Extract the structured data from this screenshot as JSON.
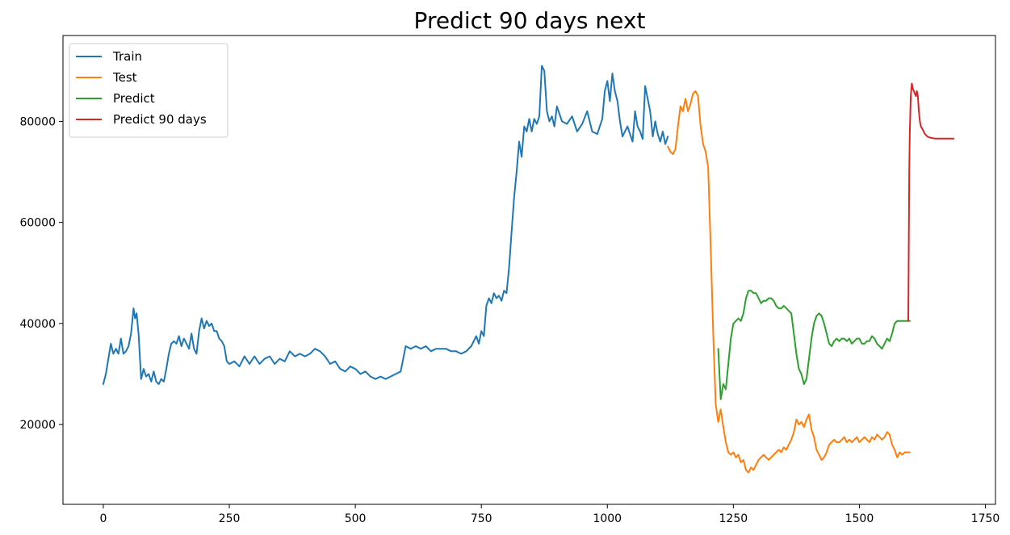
{
  "chart_data": {
    "type": "line",
    "title": "Predict 90 days next",
    "xlabel": "",
    "ylabel": "",
    "xlim": [
      -80,
      1770
    ],
    "ylim": [
      4200,
      97000
    ],
    "xticks": [
      0,
      250,
      500,
      750,
      1000,
      1250,
      1500,
      1750
    ],
    "yticks": [
      20000,
      40000,
      60000,
      80000
    ],
    "grid": false,
    "legend_position": "top-left",
    "series": [
      {
        "name": "Train",
        "color": "#1f77b4",
        "x": [
          0,
          5,
          10,
          15,
          20,
          25,
          30,
          35,
          40,
          45,
          50,
          55,
          60,
          63,
          66,
          70,
          75,
          80,
          85,
          90,
          95,
          100,
          105,
          110,
          115,
          120,
          125,
          130,
          135,
          140,
          145,
          150,
          155,
          160,
          165,
          170,
          175,
          180,
          185,
          190,
          195,
          200,
          205,
          210,
          215,
          220,
          225,
          230,
          235,
          240,
          245,
          250,
          260,
          270,
          280,
          290,
          300,
          310,
          320,
          330,
          340,
          350,
          360,
          370,
          380,
          390,
          400,
          410,
          420,
          430,
          440,
          450,
          460,
          470,
          480,
          490,
          500,
          510,
          520,
          530,
          540,
          550,
          560,
          570,
          580,
          590,
          600,
          610,
          620,
          630,
          640,
          650,
          660,
          670,
          680,
          690,
          700,
          710,
          720,
          730,
          740,
          745,
          750,
          755,
          760,
          765,
          770,
          775,
          780,
          785,
          790,
          795,
          800,
          805,
          810,
          815,
          820,
          825,
          830,
          835,
          840,
          845,
          850,
          855,
          860,
          865,
          870,
          875,
          880,
          885,
          890,
          895,
          900,
          910,
          920,
          930,
          940,
          950,
          960,
          970,
          980,
          990,
          995,
          1000,
          1005,
          1010,
          1015,
          1020,
          1025,
          1030,
          1040,
          1050,
          1055,
          1060,
          1065,
          1070,
          1075,
          1080,
          1085,
          1090,
          1095,
          1100,
          1105,
          1110,
          1115,
          1120
        ],
        "y": [
          28000,
          30000,
          33000,
          36000,
          34000,
          35000,
          34000,
          37000,
          34000,
          34500,
          35500,
          38000,
          43000,
          41000,
          42000,
          38000,
          29000,
          31000,
          29500,
          30000,
          28500,
          30500,
          28500,
          28000,
          29000,
          28500,
          31000,
          34000,
          36000,
          36500,
          36000,
          37500,
          35500,
          37000,
          36000,
          35000,
          38000,
          35000,
          34000,
          38500,
          41000,
          39000,
          40500,
          39500,
          40000,
          38500,
          38500,
          37000,
          36500,
          35500,
          32500,
          32000,
          32500,
          31500,
          33500,
          32000,
          33500,
          32000,
          33000,
          33500,
          32000,
          33000,
          32500,
          34500,
          33500,
          34000,
          33500,
          34000,
          35000,
          34500,
          33500,
          32000,
          32500,
          31000,
          30500,
          31500,
          31000,
          30000,
          30500,
          29500,
          29000,
          29500,
          29000,
          29500,
          30000,
          30500,
          35500,
          35000,
          35500,
          35000,
          35500,
          34500,
          35000,
          35000,
          35000,
          34500,
          34500,
          34000,
          34500,
          35500,
          37500,
          36000,
          38500,
          37500,
          43500,
          45000,
          44000,
          46000,
          45000,
          45500,
          44500,
          46500,
          46000,
          51000,
          58000,
          65000,
          70000,
          76000,
          73000,
          79000,
          78000,
          80500,
          78000,
          80500,
          79500,
          81000,
          91000,
          90000,
          82000,
          80000,
          81000,
          79000,
          83000,
          80000,
          79500,
          81000,
          78000,
          79500,
          82000,
          78000,
          77500,
          80500,
          86000,
          88000,
          84000,
          89500,
          86000,
          84000,
          80000,
          77000,
          79000,
          76000,
          82000,
          79000,
          78000,
          76500,
          87000,
          84500,
          82000,
          77000,
          80000,
          77500,
          76000,
          78000,
          75500,
          77000
        ]
      },
      {
        "name": "Test",
        "color": "#ff7f0e",
        "x": [
          1120,
          1125,
          1130,
          1135,
          1140,
          1145,
          1150,
          1155,
          1160,
          1165,
          1170,
          1175,
          1180,
          1185,
          1190,
          1195,
          1200,
          1205,
          1210,
          1215,
          1220,
          1225,
          1230,
          1235,
          1240,
          1245,
          1250,
          1255,
          1260,
          1265,
          1270,
          1275,
          1280,
          1285,
          1290,
          1295,
          1300,
          1305,
          1310,
          1315,
          1320,
          1325,
          1330,
          1335,
          1340,
          1345,
          1350,
          1355,
          1360,
          1365,
          1370,
          1375,
          1380,
          1385,
          1390,
          1395,
          1400,
          1405,
          1410,
          1415,
          1420,
          1425,
          1430,
          1435,
          1440,
          1445,
          1450,
          1455,
          1460,
          1465,
          1470,
          1475,
          1480,
          1485,
          1490,
          1495,
          1500,
          1505,
          1510,
          1515,
          1520,
          1525,
          1530,
          1535,
          1540,
          1545,
          1550,
          1555,
          1560,
          1565,
          1570,
          1575,
          1580,
          1585,
          1590,
          1595,
          1600
        ],
        "y": [
          75000,
          74000,
          73500,
          74500,
          79000,
          83000,
          82000,
          84500,
          82000,
          83500,
          85500,
          86000,
          85000,
          79000,
          75500,
          74000,
          71000,
          55000,
          38000,
          24000,
          20500,
          23000,
          19500,
          16500,
          14500,
          14000,
          14500,
          13500,
          14000,
          12500,
          13000,
          11000,
          10500,
          11500,
          11000,
          12000,
          13000,
          13500,
          14000,
          13500,
          13000,
          13500,
          14000,
          14500,
          15000,
          14500,
          15500,
          15000,
          16000,
          17000,
          18500,
          21000,
          20000,
          20500,
          19500,
          21000,
          22000,
          19000,
          17500,
          15000,
          14000,
          13000,
          13500,
          14500,
          16000,
          16500,
          17000,
          16500,
          16500,
          17000,
          17500,
          16500,
          17000,
          16500,
          17000,
          17500,
          16500,
          17000,
          17500,
          17000,
          16500,
          17500,
          17000,
          18000,
          17500,
          17000,
          17500,
          18500,
          18000,
          16000,
          15000,
          13500,
          14500,
          14000,
          14500,
          14500,
          14500
        ]
      },
      {
        "name": "Predict",
        "color": "#2ca02c",
        "x": [
          1220,
          1225,
          1230,
          1235,
          1240,
          1245,
          1250,
          1255,
          1260,
          1265,
          1270,
          1275,
          1280,
          1285,
          1290,
          1295,
          1300,
          1305,
          1310,
          1315,
          1320,
          1325,
          1330,
          1335,
          1340,
          1345,
          1350,
          1355,
          1360,
          1365,
          1370,
          1375,
          1380,
          1385,
          1390,
          1395,
          1400,
          1405,
          1410,
          1415,
          1420,
          1425,
          1430,
          1435,
          1440,
          1445,
          1450,
          1455,
          1460,
          1465,
          1470,
          1475,
          1480,
          1485,
          1490,
          1495,
          1500,
          1505,
          1510,
          1515,
          1520,
          1525,
          1530,
          1535,
          1540,
          1545,
          1550,
          1555,
          1560,
          1565,
          1570,
          1575,
          1580,
          1585,
          1590,
          1595,
          1600
        ],
        "y": [
          35000,
          25000,
          28000,
          27000,
          32000,
          37000,
          40000,
          40500,
          41000,
          40500,
          42000,
          45000,
          46500,
          46500,
          46000,
          46000,
          45000,
          44000,
          44500,
          44500,
          45000,
          45000,
          44500,
          43500,
          43000,
          43000,
          43500,
          43000,
          42500,
          42000,
          38000,
          34000,
          31000,
          30000,
          28000,
          29000,
          33000,
          37000,
          40000,
          41500,
          42000,
          41500,
          40000,
          38000,
          36000,
          35500,
          36500,
          37000,
          36500,
          37000,
          37000,
          36500,
          37000,
          36000,
          36500,
          37000,
          37000,
          36000,
          36000,
          36500,
          36500,
          37500,
          37000,
          36000,
          35500,
          35000,
          36000,
          37000,
          36500,
          38000,
          40000,
          40500,
          40500,
          40500,
          40500,
          40500,
          40500
        ]
      },
      {
        "name": "Predict 90 days",
        "color": "#d62728",
        "x": [
          1597,
          1598,
          1599,
          1600,
          1602,
          1604,
          1606,
          1608,
          1610,
          1612,
          1614,
          1616,
          1618,
          1620,
          1622,
          1625,
          1630,
          1635,
          1640,
          1645,
          1650,
          1655,
          1660,
          1665,
          1670,
          1675,
          1680,
          1687
        ],
        "y": [
          40500,
          55000,
          70000,
          78000,
          85000,
          87500,
          86500,
          86000,
          85500,
          85000,
          86000,
          85000,
          82000,
          80000,
          79000,
          78500,
          77500,
          77000,
          76800,
          76700,
          76600,
          76600,
          76600,
          76600,
          76600,
          76600,
          76600,
          76600
        ]
      }
    ]
  }
}
